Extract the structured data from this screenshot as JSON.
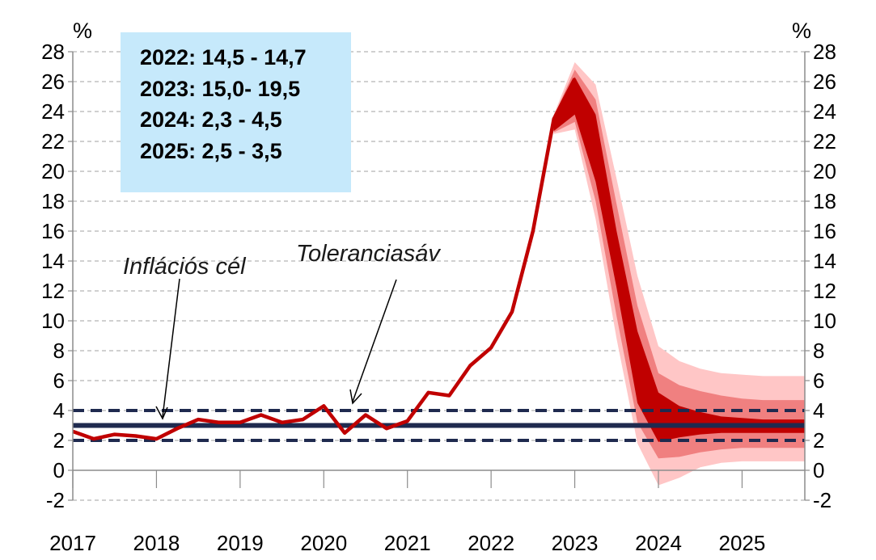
{
  "chart_data": {
    "type": "line",
    "left_axis_unit": "%",
    "right_axis_unit": "%",
    "ylim": [
      -2,
      28
    ],
    "yticks": [
      -2,
      0,
      2,
      4,
      6,
      8,
      10,
      12,
      14,
      16,
      18,
      20,
      22,
      24,
      26,
      28
    ],
    "x_tick_labels": [
      "2017",
      "2018",
      "2019",
      "2020",
      "2021",
      "2022",
      "2023",
      "2024",
      "2025"
    ],
    "grid": "horizontal dashed",
    "colors": {
      "history_line": "#c00000",
      "band_inner": "#c00000",
      "band_middle": "#f08080",
      "band_outer": "#ffc6c6",
      "target_line": "#1f2a4f",
      "info_box": "#c6e9fb"
    },
    "annotations": {
      "target": "Inflációs cél",
      "tolerance": "Toleranciasáv"
    },
    "forecast_box": [
      "2022: 14,5 - 14,7",
      "2023: 15,0- 19,5",
      "2024: 2,3 - 4,5",
      "2025: 2,5 - 3,5"
    ],
    "inflation_target": 3,
    "tolerance_band": [
      2,
      4
    ],
    "history": {
      "x": [
        2017.0,
        2017.25,
        2017.5,
        2017.75,
        2018.0,
        2018.25,
        2018.5,
        2018.75,
        2019.0,
        2019.25,
        2019.5,
        2019.75,
        2020.0,
        2020.25,
        2020.5,
        2020.75,
        2021.0,
        2021.25,
        2021.5,
        2021.75,
        2022.0,
        2022.25,
        2022.5,
        2022.75,
        2023.0
      ],
      "values": [
        2.6,
        2.1,
        2.4,
        2.3,
        2.1,
        2.8,
        3.4,
        3.2,
        3.2,
        3.7,
        3.2,
        3.4,
        4.3,
        2.5,
        3.7,
        2.8,
        3.3,
        5.2,
        5.0,
        7.0,
        8.2,
        10.6,
        16.0,
        23.5,
        26.2
      ]
    },
    "forecast_bands": {
      "x": [
        2022.75,
        2023.0,
        2023.25,
        2023.5,
        2023.75,
        2024.0,
        2024.25,
        2024.5,
        2024.75,
        2025.0,
        2025.25,
        2025.5,
        2025.75
      ],
      "outer_upper": [
        23.8,
        27.3,
        25.8,
        19.5,
        13.0,
        8.3,
        7.3,
        6.8,
        6.5,
        6.4,
        6.3,
        6.3,
        6.3
      ],
      "outer_lower": [
        22.5,
        22.8,
        16.8,
        8.8,
        1.8,
        -1.0,
        -0.5,
        0.2,
        0.5,
        0.6,
        0.6,
        0.6,
        0.6
      ],
      "middle_upper": [
        23.7,
        26.8,
        24.8,
        17.8,
        11.0,
        6.5,
        5.7,
        5.3,
        5.0,
        4.8,
        4.7,
        4.7,
        4.7
      ],
      "middle_lower": [
        22.6,
        23.3,
        18.0,
        10.3,
        3.2,
        0.8,
        0.9,
        1.2,
        1.4,
        1.5,
        1.5,
        1.5,
        1.5
      ],
      "inner_upper": [
        23.6,
        26.3,
        23.8,
        16.0,
        9.3,
        5.2,
        4.3,
        3.9,
        3.6,
        3.5,
        3.4,
        3.4,
        3.4
      ],
      "inner_lower": [
        22.7,
        23.8,
        19.3,
        12.2,
        4.5,
        1.9,
        2.2,
        2.4,
        2.5,
        2.5,
        2.5,
        2.5,
        2.5
      ]
    }
  }
}
